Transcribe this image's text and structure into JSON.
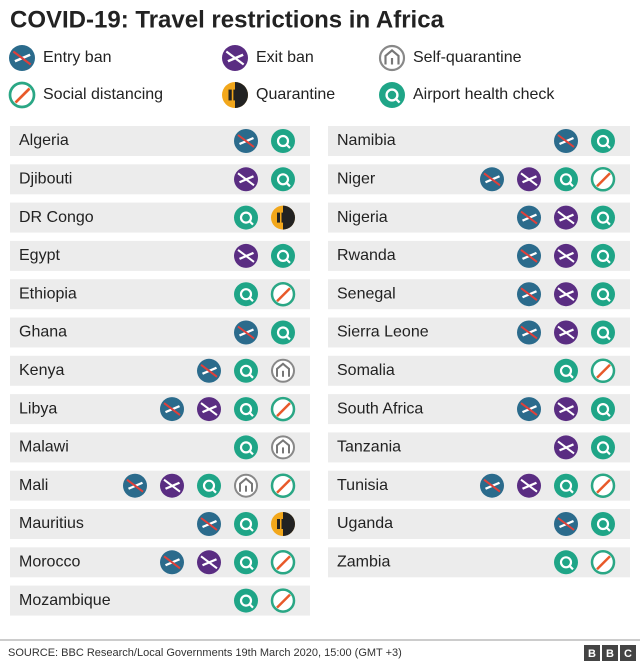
{
  "header": {
    "title": "COVID-19: Travel restrictions in Africa"
  },
  "legend": [
    "Entry ban",
    "Exit ban",
    "Self-quarantine",
    "Social  distancing",
    "Quarantine",
    "Airport health check"
  ],
  "columns": [
    [
      {
        "country": "Algeria",
        "restrictions": [
          "Entry ban",
          "Airport health check"
        ]
      },
      {
        "country": "Djibouti",
        "restrictions": [
          "Exit ban",
          "Airport health check"
        ]
      },
      {
        "country": "DR Congo",
        "restrictions": [
          "Airport health check",
          "Quarantine"
        ]
      },
      {
        "country": "Egypt",
        "restrictions": [
          "Exit ban",
          "Airport health check"
        ]
      },
      {
        "country": "Ethiopia",
        "restrictions": [
          "Airport health check",
          "Social  distancing"
        ]
      },
      {
        "country": "Ghana",
        "restrictions": [
          "Entry ban",
          "Airport health check"
        ]
      },
      {
        "country": "Kenya",
        "restrictions": [
          "Entry ban",
          "Airport health check",
          "Self-quarantine"
        ]
      },
      {
        "country": "Libya",
        "restrictions": [
          "Entry ban",
          "Exit ban",
          "Airport health check",
          "Social  distancing"
        ]
      },
      {
        "country": "Malawi",
        "restrictions": [
          "Airport health check",
          "Self-quarantine"
        ]
      },
      {
        "country": "Mali",
        "restrictions": [
          "Entry ban",
          "Exit ban",
          "Airport health check",
          "Self-quarantine",
          "Social  distancing"
        ]
      },
      {
        "country": "Mauritius",
        "restrictions": [
          "Entry ban",
          "Airport health check",
          "Quarantine"
        ]
      },
      {
        "country": "Morocco",
        "restrictions": [
          "Entry ban",
          "Exit ban",
          "Airport health check",
          "Social  distancing"
        ]
      },
      {
        "country": "Mozambique",
        "restrictions": [
          "Airport health check",
          "Social  distancing"
        ]
      }
    ],
    [
      {
        "country": "Namibia",
        "restrictions": [
          "Entry ban",
          "Airport health check"
        ]
      },
      {
        "country": "Niger",
        "restrictions": [
          "Entry ban",
          "Exit ban",
          "Airport health check",
          "Social  distancing"
        ]
      },
      {
        "country": "Nigeria",
        "restrictions": [
          "Entry ban",
          "Exit ban",
          "Airport health check"
        ]
      },
      {
        "country": "Rwanda",
        "restrictions": [
          "Entry ban",
          "Exit ban",
          "Airport health check"
        ]
      },
      {
        "country": "Senegal",
        "restrictions": [
          "Entry ban",
          "Exit ban",
          "Airport health check"
        ]
      },
      {
        "country": "Sierra Leone",
        "restrictions": [
          "Entry ban",
          "Exit ban",
          "Airport health check"
        ]
      },
      {
        "country": "Somalia",
        "restrictions": [
          "Airport health check",
          "Social  distancing"
        ]
      },
      {
        "country": "South Africa",
        "restrictions": [
          "Entry ban",
          "Exit ban",
          "Airport health check"
        ]
      },
      {
        "country": "Tanzania",
        "restrictions": [
          "Exit ban",
          "Airport health check"
        ]
      },
      {
        "country": "Tunisia",
        "restrictions": [
          "Entry ban",
          "Exit ban",
          "Airport health check",
          "Social  distancing"
        ]
      },
      {
        "country": "Uganda",
        "restrictions": [
          "Entry ban",
          "Airport health check"
        ]
      },
      {
        "country": "Zambia",
        "restrictions": [
          "Airport health check",
          "Social  distancing"
        ]
      }
    ]
  ],
  "footer": {
    "source": "SOURCE: BBC Research/Local Governments 19th March 2020, 15:00 (GMT +3)",
    "logo": [
      "B",
      "B",
      "C"
    ]
  }
}
